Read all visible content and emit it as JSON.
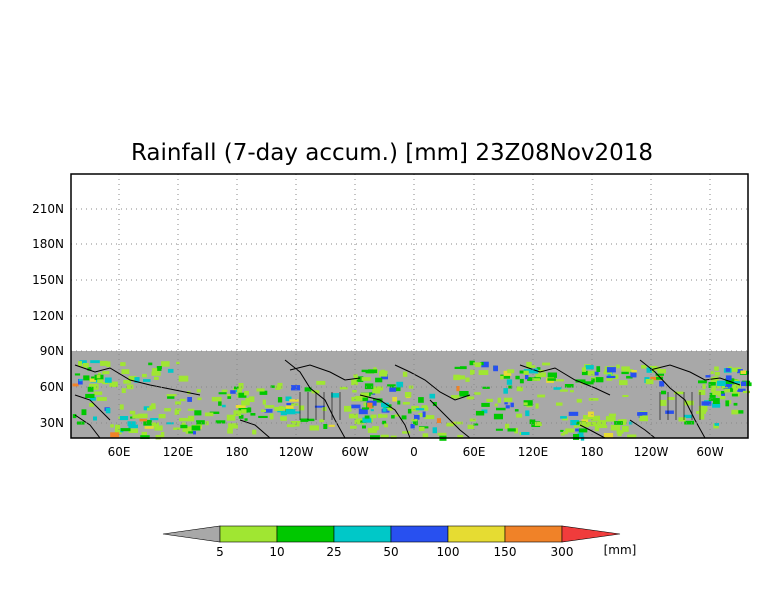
{
  "title": "Rainfall (7-day accum.) [mm] 23Z08Nov2018",
  "map": {
    "lat_labels": [
      "210N",
      "180N",
      "150N",
      "120N",
      "90N",
      "60N",
      "30N"
    ],
    "lon_labels": [
      "60E",
      "120E",
      "180",
      "120W",
      "60W",
      "0",
      "60E",
      "120E",
      "180",
      "120W",
      "60W"
    ],
    "data_band_color": "#a8a8a8",
    "grid": true
  },
  "legend": {
    "thresholds": [
      "5",
      "10",
      "25",
      "50",
      "100",
      "150",
      "300"
    ],
    "unit": "[mm]",
    "colors": [
      "#a8a8a8",
      "#a0e632",
      "#00c800",
      "#00c8c8",
      "#2850f0",
      "#e6dc32",
      "#f08228",
      "#f03c3c"
    ]
  }
}
